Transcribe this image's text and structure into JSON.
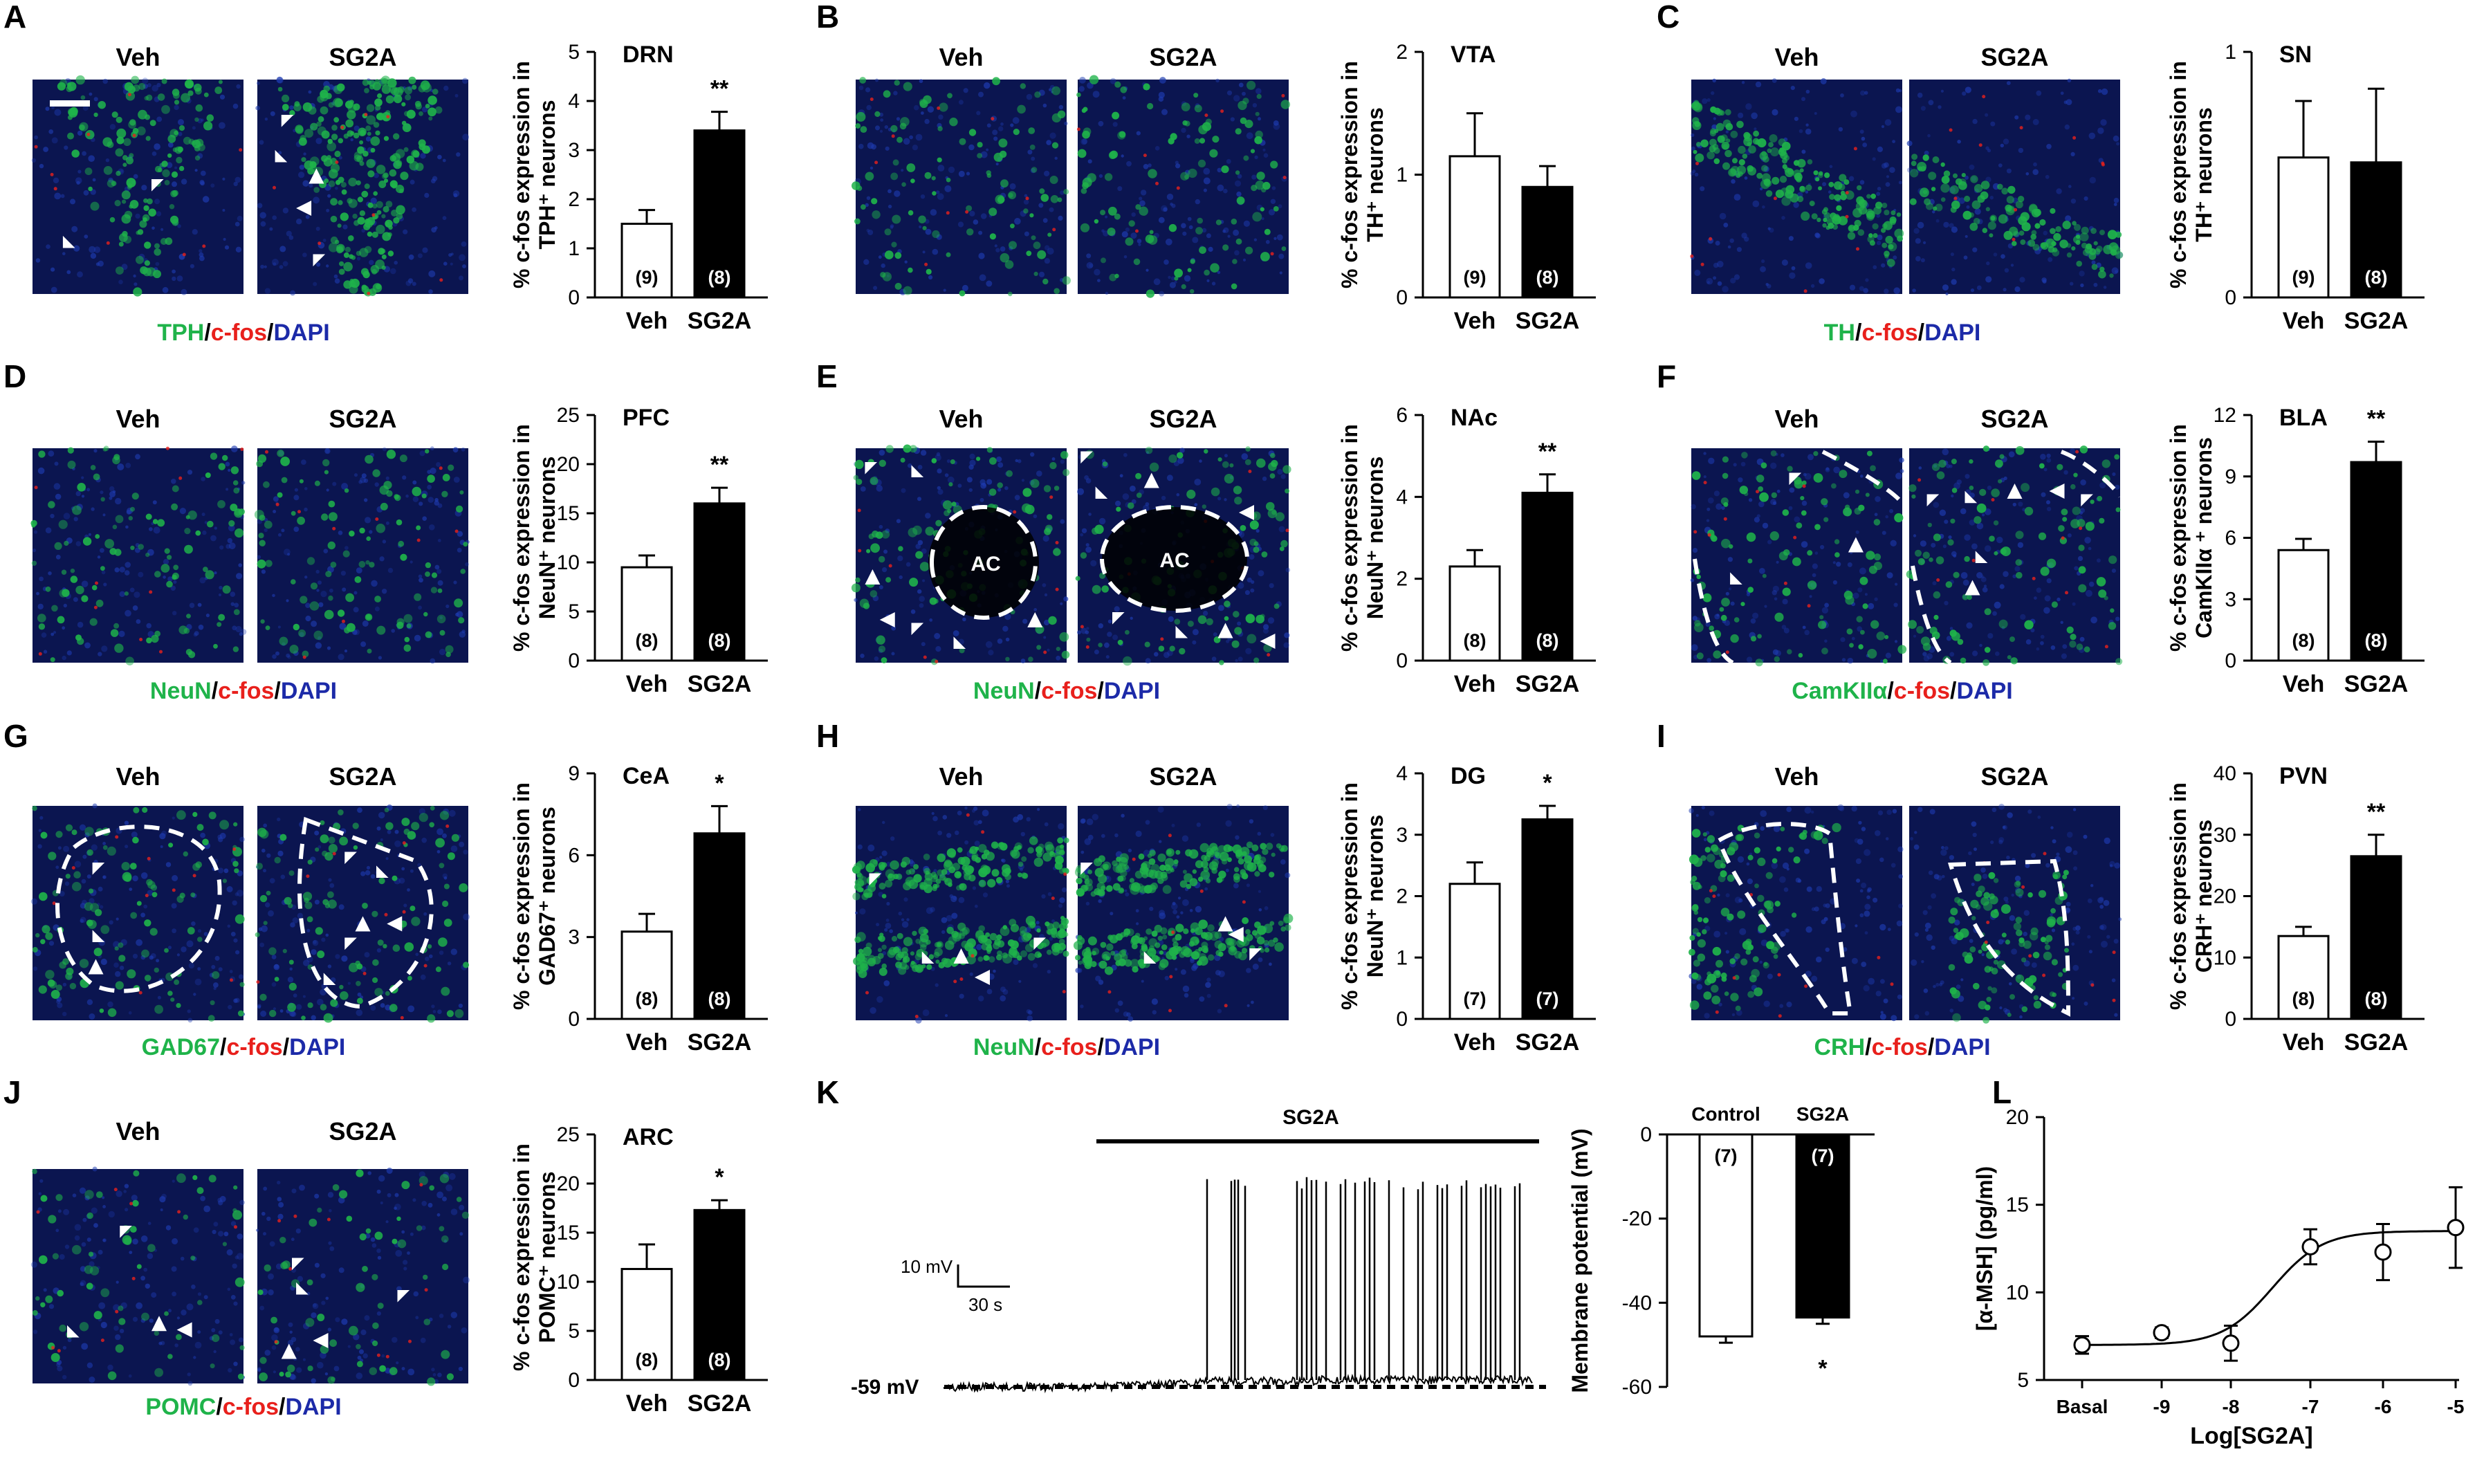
{
  "panels": [
    {
      "letter": "A",
      "veh": "Veh",
      "drug": "SG2A",
      "stain": {
        "green": "TPH",
        "red": "c-fos",
        "blue": "DAPI"
      },
      "region": "DRN",
      "ylabel": [
        "% c-fos expression in",
        "TPH⁺ neurons"
      ],
      "yticks": [
        "0",
        "1",
        "2",
        "3",
        "4",
        "5"
      ],
      "ymax": 5,
      "values": [
        1.5,
        3.4
      ],
      "errors": [
        0.28,
        0.38
      ],
      "n": [
        "(9)",
        "(8)"
      ],
      "sig": "**",
      "categories": [
        "Veh",
        "SG2A"
      ]
    },
    {
      "letter": "B",
      "veh": "Veh",
      "drug": "SG2A",
      "stain": null,
      "region": "VTA",
      "ylabel": [
        "% c-fos expression in",
        "TH⁺ neurons"
      ],
      "yticks": [
        "0",
        "1",
        "2"
      ],
      "ymax": 2,
      "values": [
        1.15,
        0.9
      ],
      "errors": [
        0.35,
        0.17
      ],
      "n": [
        "(9)",
        "(8)"
      ],
      "sig": "",
      "categories": [
        "Veh",
        "SG2A"
      ]
    },
    {
      "letter": "C",
      "veh": "Veh",
      "drug": "SG2A",
      "stain": {
        "green": "TH",
        "red": "c-fos",
        "blue": "DAPI"
      },
      "region": "SN",
      "ylabel": [
        "% c-fos expression in",
        "TH⁺ neurons"
      ],
      "yticks": [
        "0",
        "1"
      ],
      "ymax": 1,
      "values": [
        0.57,
        0.55
      ],
      "errors": [
        0.23,
        0.3
      ],
      "n": [
        "(9)",
        "(8)"
      ],
      "sig": "",
      "categories": [
        "Veh",
        "SG2A"
      ]
    },
    {
      "letter": "D",
      "veh": "Veh",
      "drug": "SG2A",
      "stain": {
        "green": "NeuN",
        "red": "c-fos",
        "blue": "DAPI"
      },
      "region": "PFC",
      "ylabel": [
        "% c-fos expression in",
        "NeuN⁺ neurons"
      ],
      "yticks": [
        "0",
        "5",
        "10",
        "15",
        "20",
        "25"
      ],
      "ymax": 25,
      "values": [
        9.5,
        16
      ],
      "errors": [
        1.2,
        1.6
      ],
      "n": [
        "(8)",
        "(8)"
      ],
      "sig": "**",
      "categories": [
        "Veh",
        "SG2A"
      ]
    },
    {
      "letter": "E",
      "veh": "Veh",
      "drug": "SG2A",
      "stain": {
        "green": "NeuN",
        "red": "c-fos",
        "blue": "DAPI"
      },
      "region": "NAc",
      "ylabel": [
        "% c-fos expression in",
        "NeuN⁺ neurons"
      ],
      "yticks": [
        "0",
        "2",
        "4",
        "6"
      ],
      "ymax": 6,
      "values": [
        2.3,
        4.1
      ],
      "errors": [
        0.4,
        0.45
      ],
      "n": [
        "(8)",
        "(8)"
      ],
      "sig": "**",
      "categories": [
        "Veh",
        "SG2A"
      ],
      "roi": "AC"
    },
    {
      "letter": "F",
      "veh": "Veh",
      "drug": "SG2A",
      "stain": {
        "green": "CamKIIα",
        "red": "c-fos",
        "blue": "DAPI"
      },
      "region": "BLA",
      "ylabel": [
        "% c-fos expression in",
        "CamKIIα ⁺ neurons"
      ],
      "yticks": [
        "0",
        "3",
        "6",
        "9",
        "12"
      ],
      "ymax": 12,
      "values": [
        5.4,
        9.7
      ],
      "errors": [
        0.55,
        1.0
      ],
      "n": [
        "(8)",
        "(8)"
      ],
      "sig": "**",
      "categories": [
        "Veh",
        "SG2A"
      ]
    },
    {
      "letter": "G",
      "veh": "Veh",
      "drug": "SG2A",
      "stain": {
        "green": "GAD67",
        "red": "c-fos",
        "blue": "DAPI"
      },
      "region": "CeA",
      "ylabel": [
        "% c-fos expression in",
        "GAD67⁺ neurons"
      ],
      "yticks": [
        "0",
        "3",
        "6",
        "9"
      ],
      "ymax": 9,
      "values": [
        3.2,
        6.8
      ],
      "errors": [
        0.65,
        1.0
      ],
      "n": [
        "(8)",
        "(8)"
      ],
      "sig": "*",
      "categories": [
        "Veh",
        "SG2A"
      ]
    },
    {
      "letter": "H",
      "veh": "Veh",
      "drug": "SG2A",
      "stain": {
        "green": "NeuN",
        "red": "c-fos",
        "blue": "DAPI"
      },
      "region": "DG",
      "ylabel": [
        "% c-fos expression in",
        "NeuN⁺ neurons"
      ],
      "yticks": [
        "0",
        "1",
        "2",
        "3",
        "4"
      ],
      "ymax": 4,
      "values": [
        2.2,
        3.25
      ],
      "errors": [
        0.35,
        0.22
      ],
      "n": [
        "(7)",
        "(7)"
      ],
      "sig": "*",
      "categories": [
        "Veh",
        "SG2A"
      ]
    },
    {
      "letter": "I",
      "veh": "Veh",
      "drug": "SG2A",
      "stain": {
        "green": "CRH",
        "red": "c-fos",
        "blue": "DAPI"
      },
      "region": "PVN",
      "ylabel": [
        "% c-fos expression in",
        "CRH⁺ neurons"
      ],
      "yticks": [
        "0",
        "10",
        "20",
        "30",
        "40"
      ],
      "ymax": 40,
      "values": [
        13.5,
        26.5
      ],
      "errors": [
        1.5,
        3.5
      ],
      "n": [
        "(8)",
        "(8)"
      ],
      "sig": "**",
      "categories": [
        "Veh",
        "SG2A"
      ]
    },
    {
      "letter": "J",
      "veh": "Veh",
      "drug": "SG2A",
      "stain": {
        "green": "POMC",
        "red": "c-fos",
        "blue": "DAPI"
      },
      "region": "ARC",
      "ylabel": [
        "% c-fos expression in",
        "POMC⁺ neurons"
      ],
      "yticks": [
        "0",
        "5",
        "10",
        "15",
        "20",
        "25"
      ],
      "ymax": 25,
      "values": [
        11.3,
        17.3
      ],
      "errors": [
        2.5,
        1.0
      ],
      "n": [
        "(8)",
        "(8)"
      ],
      "sig": "*",
      "categories": [
        "Veh",
        "SG2A"
      ]
    }
  ],
  "panelK": {
    "letter": "K",
    "drug_bar_label": "SG2A",
    "scale_v": "10 mV",
    "scale_t": "30 s",
    "baseline": "-59 mV",
    "bar": {
      "categories": [
        "Control",
        "SG2A"
      ],
      "values": [
        -48,
        -43.5
      ],
      "errors": [
        1.5,
        1.5
      ],
      "n": [
        "(7)",
        "(7)"
      ],
      "sig": "*",
      "ylabel": "Membrane potential (mV)",
      "yticks": [
        "0",
        "-20",
        "-40",
        "-60"
      ],
      "ylim": [
        -60,
        0
      ]
    }
  },
  "panelL": {
    "letter": "L",
    "xlabel": "Log[SG2A]",
    "ylabel": "[α-MSH] (pg/ml)",
    "xticks": [
      "Basal",
      "-9",
      "-8",
      "-7",
      "-6",
      "-5"
    ],
    "yticks": [
      "5",
      "10",
      "15",
      "20"
    ],
    "ylim": [
      5,
      20
    ],
    "points": [
      {
        "x": "Basal",
        "y": 7.0,
        "err": 0.5
      },
      {
        "x": "-9",
        "y": 7.7,
        "err": 0.3
      },
      {
        "x": "-8",
        "y": 7.1,
        "err": 1.0
      },
      {
        "x": "-7",
        "y": 12.6,
        "err": 1.0
      },
      {
        "x": "-6",
        "y": 12.3,
        "err": 1.6
      },
      {
        "x": "-5",
        "y": 13.7,
        "err": 2.3
      }
    ]
  },
  "colors": {
    "green": "#1fb34a",
    "red": "#e8201c",
    "blue": "#1c2aa8",
    "bar_black": "#000000",
    "bar_white": "#ffffff"
  },
  "chart_data": [
    {
      "type": "bar",
      "title": "DRN",
      "categories": [
        "Veh",
        "SG2A"
      ],
      "values": [
        1.5,
        3.4
      ],
      "ylabel": "% c-fos expression in TPH⁺ neurons",
      "ylim": [
        0,
        5
      ]
    },
    {
      "type": "bar",
      "title": "VTA",
      "categories": [
        "Veh",
        "SG2A"
      ],
      "values": [
        1.15,
        0.9
      ],
      "ylabel": "% c-fos expression in TH⁺ neurons",
      "ylim": [
        0,
        2
      ]
    },
    {
      "type": "bar",
      "title": "SN",
      "categories": [
        "Veh",
        "SG2A"
      ],
      "values": [
        0.57,
        0.55
      ],
      "ylabel": "% c-fos expression in TH⁺ neurons",
      "ylim": [
        0,
        1
      ]
    },
    {
      "type": "bar",
      "title": "PFC",
      "categories": [
        "Veh",
        "SG2A"
      ],
      "values": [
        9.5,
        16
      ],
      "ylabel": "% c-fos expression in NeuN⁺ neurons",
      "ylim": [
        0,
        25
      ]
    },
    {
      "type": "bar",
      "title": "NAc",
      "categories": [
        "Veh",
        "SG2A"
      ],
      "values": [
        2.3,
        4.1
      ],
      "ylabel": "% c-fos expression in NeuN⁺ neurons",
      "ylim": [
        0,
        6
      ]
    },
    {
      "type": "bar",
      "title": "BLA",
      "categories": [
        "Veh",
        "SG2A"
      ],
      "values": [
        5.4,
        9.7
      ],
      "ylabel": "% c-fos expression in CamKIIα ⁺ neurons",
      "ylim": [
        0,
        12
      ]
    },
    {
      "type": "bar",
      "title": "CeA",
      "categories": [
        "Veh",
        "SG2A"
      ],
      "values": [
        3.2,
        6.8
      ],
      "ylabel": "% c-fos expression in GAD67⁺ neurons",
      "ylim": [
        0,
        9
      ]
    },
    {
      "type": "bar",
      "title": "DG",
      "categories": [
        "Veh",
        "SG2A"
      ],
      "values": [
        2.2,
        3.25
      ],
      "ylabel": "% c-fos expression in NeuN⁺ neurons",
      "ylim": [
        0,
        4
      ]
    },
    {
      "type": "bar",
      "title": "PVN",
      "categories": [
        "Veh",
        "SG2A"
      ],
      "values": [
        13.5,
        26.5
      ],
      "ylabel": "% c-fos expression in CRH⁺ neurons",
      "ylim": [
        0,
        40
      ]
    },
    {
      "type": "bar",
      "title": "ARC",
      "categories": [
        "Veh",
        "SG2A"
      ],
      "values": [
        11.3,
        17.3
      ],
      "ylabel": "% c-fos expression in POMC⁺ neurons",
      "ylim": [
        0,
        25
      ]
    },
    {
      "type": "bar",
      "title": "",
      "categories": [
        "Control",
        "SG2A"
      ],
      "values": [
        -48,
        -43.5
      ],
      "ylabel": "Membrane potential (mV)",
      "ylim": [
        -60,
        0
      ]
    },
    {
      "type": "scatter",
      "title": "",
      "x": [
        "Basal",
        "-9",
        "-8",
        "-7",
        "-6",
        "-5"
      ],
      "y": [
        7.0,
        7.7,
        7.1,
        12.6,
        12.3,
        13.7
      ],
      "xlabel": "Log[SG2A]",
      "ylabel": "[α-MSH] (pg/ml)",
      "ylim": [
        5,
        20
      ]
    }
  ]
}
